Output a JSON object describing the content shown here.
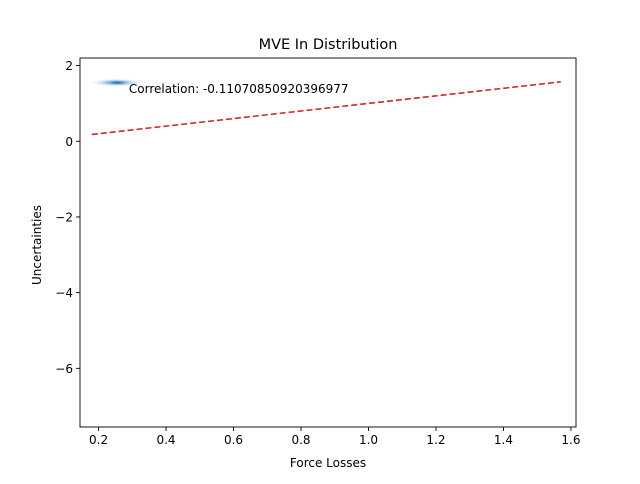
{
  "chart_data": {
    "type": "scatter",
    "title": "MVE In Distribution",
    "xlabel": "Force Losses",
    "ylabel": "Uncertainties",
    "xlim": [
      0.145,
      1.615
    ],
    "ylim": [
      -7.55,
      2.2
    ],
    "x_ticks": [
      0.2,
      0.4,
      0.6,
      0.8,
      1.0,
      1.2,
      1.4,
      1.6
    ],
    "x_tick_labels": [
      "0.2",
      "0.4",
      "0.6",
      "0.8",
      "1.0",
      "1.2",
      "1.4",
      "1.6"
    ],
    "y_ticks": [
      2,
      0,
      -2,
      -4,
      -6
    ],
    "y_tick_labels": [
      "2",
      "0",
      "−2",
      "−4",
      "−6"
    ],
    "grid": false,
    "annotation": {
      "text": "Correlation: -0.11070850920396977",
      "x": 0.29,
      "y": 1.28
    },
    "density": {
      "color": "#1f77b4",
      "center_x": 0.255,
      "center_y": 1.55,
      "levels": [
        {
          "spread_x": 0.075,
          "spread_y": 0.095,
          "opacity": 0.06
        },
        {
          "spread_x": 0.06,
          "spread_y": 0.08,
          "opacity": 0.1
        },
        {
          "spread_x": 0.045,
          "spread_y": 0.065,
          "opacity": 0.18
        },
        {
          "spread_x": 0.032,
          "spread_y": 0.05,
          "opacity": 0.3
        },
        {
          "spread_x": 0.02,
          "spread_y": 0.035,
          "opacity": 0.5
        },
        {
          "spread_x": 0.012,
          "spread_y": 0.022,
          "opacity": 0.85
        }
      ]
    },
    "series": [
      {
        "style": "dashed",
        "color": "#d62728",
        "x": [
          0.18,
          1.57
        ],
        "y": [
          0.18,
          1.57
        ]
      }
    ]
  }
}
